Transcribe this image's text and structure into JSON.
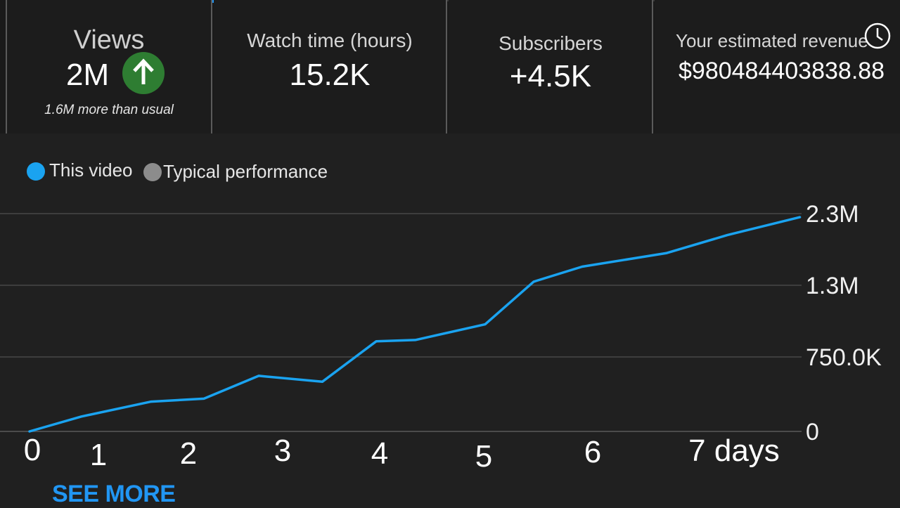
{
  "metrics": {
    "views": {
      "label": "Views",
      "value": "2M",
      "note": "1.6M more than usual",
      "trend_icon": "arrow-up-icon"
    },
    "watch_time": {
      "label": "Watch time (hours)",
      "value": "15.2K"
    },
    "subscribers": {
      "label": "Subscribers",
      "value": "+4.5K"
    },
    "revenue": {
      "label": "Your estimated revenue",
      "value": "$980484403838.88",
      "icon": "clock-icon"
    }
  },
  "legend": {
    "this_video": {
      "label": "This video",
      "color": "#1aa3f0"
    },
    "typical": {
      "label": "Typical performance",
      "color": "#8c8c8c"
    }
  },
  "colors": {
    "accent": "#2196f3",
    "line": "#1aa3f0",
    "grid": "#5a5a5a",
    "up_badge": "#2e7d32"
  },
  "chart_data": {
    "type": "line",
    "x_tick_labels": [
      "0",
      "1",
      "2",
      "3",
      "4",
      "5",
      "6",
      "7 days"
    ],
    "y_tick_labels": [
      "2.3M",
      "1.3M",
      "750.0K",
      "0"
    ],
    "series": [
      {
        "name": "This video",
        "x": [
          0,
          0.6,
          1.4,
          2.0,
          2.6,
          3.3,
          3.9,
          4.3,
          5.0,
          5.5,
          6.0,
          6.7,
          7.2,
          7.8
        ],
        "y": [
          0,
          150000,
          300000,
          330000,
          560000,
          500000,
          870000,
          880000,
          1000000,
          1350000,
          1560000,
          1750000,
          2000000,
          2250000
        ]
      }
    ]
  },
  "actions": {
    "see_more": "SEE MORE"
  }
}
